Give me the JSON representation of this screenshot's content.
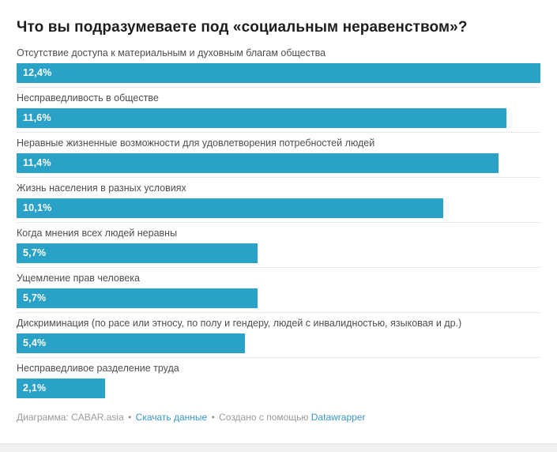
{
  "chart_data": {
    "type": "bar",
    "orientation": "horizontal",
    "title": "Что вы подразумеваете под «социальным неравенством»?",
    "categories": [
      "Отсутствие доступа к материальным и духовным благам общества",
      "Несправедливость в обществе",
      "Неравные жизненные возможности для удовлетворения потребностей людей",
      "Жизнь населения в разных условиях",
      "Когда мнения всех людей неравны",
      "Ущемление прав человека",
      "Дискриминация (по расе или этносу, по полу и гендеру, людей с инвалидностью, языковая и др.)",
      "Несправедливое разделение труда"
    ],
    "values": [
      12.4,
      11.6,
      11.4,
      10.1,
      5.7,
      5.7,
      5.4,
      2.1
    ],
    "display_values": [
      "12,4%",
      "11,6%",
      "11,4%",
      "10,1%",
      "5,7%",
      "5,7%",
      "5,4%",
      "2,1%"
    ],
    "unit": "%",
    "xlim": [
      0,
      12.4
    ],
    "grid": false,
    "legend": false,
    "bar_color": "#2aa1c6",
    "value_label_position": "inside-left"
  },
  "footer": {
    "attribution": "Диаграмма: CABAR.asia",
    "bullet": "•",
    "download_label": "Скачать данные",
    "created_with": "Создано с помощью",
    "datawrapper_label": "Datawrapper"
  },
  "colors": {
    "bar": "#2aa1c6",
    "title": "#1d1d1d",
    "category_label": "#4e4e4e",
    "footer_text": "#9a9a9a",
    "link": "#3a96c9",
    "separator": "#d2d2d2",
    "bottom_strip": "#f0f0f0"
  }
}
